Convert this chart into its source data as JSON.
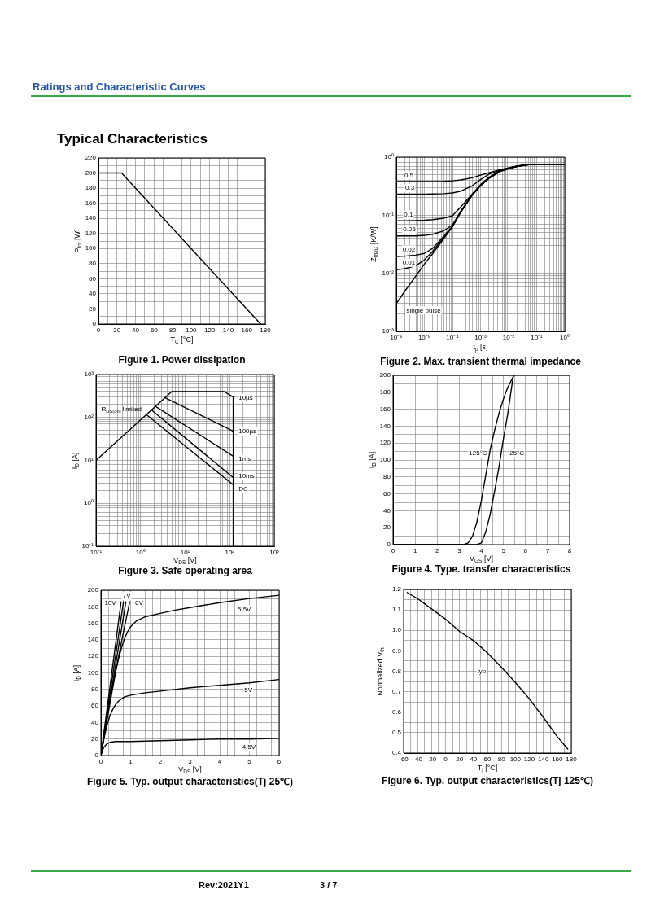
{
  "chart_data": [
    {
      "type": "line",
      "title": "Figure 1. Power dissipation",
      "xlabel": "T$_{C}$ [°C]",
      "ylabel": "P$_{tot}$ [W]",
      "annotations": [
        "Ratings and Characteristic Curves",
        "Typical Characteristics"
      ],
      "x": [
        0,
        25,
        175
      ],
      "values": [
        200,
        200,
        0
      ],
      "color": "#000000",
      "xlim": [
        0,
        180
      ],
      "ylim": [
        0,
        220
      ],
      "xticks": [
        0,
        {
          "value": 10,
          "label": null
        },
        20,
        {
          "value": 30,
          "label": null
        },
        40,
        {
          "value": 50,
          "label": null
        },
        60,
        {
          "value": 70,
          "label": null
        },
        80,
        {
          "value": 90,
          "label": null
        },
        100,
        {
          "value": 110,
          "label": null
        },
        120,
        {
          "value": 130,
          "label": null
        },
        140,
        {
          "value": 150,
          "label": null
        },
        160,
        {
          "value": 170,
          "label": null
        },
        180
      ],
      "yticks": [
        0,
        {
          "value": 10,
          "label": null
        },
        20,
        {
          "value": 30,
          "label": null
        },
        40,
        {
          "value": 50,
          "label": null
        },
        60,
        {
          "value": 70,
          "label": null
        },
        80,
        {
          "value": 90,
          "label": null
        },
        100,
        {
          "value": 110,
          "label": null
        },
        120,
        {
          "value": 130,
          "label": null
        },
        140,
        {
          "value": 150,
          "label": null
        },
        160,
        {
          "value": 170,
          "label": null
        },
        180,
        {
          "value": 190,
          "label": null
        },
        200,
        {
          "value": 210,
          "label": null
        },
        220
      ],
      "grid": true,
      "marker": "none"
    },
    {
      "type": "line",
      "title": "Figure 2. Max. transient thermal impedance",
      "xlabel": "t$_{p}$ [s]",
      "ylabel": "Z$_{thJC}$ [K/W]",
      "x": [
        1e-06,
        2e-06,
        5e-06,
        1e-05,
        2e-05,
        5e-05,
        0.0001,
        0.0002,
        0.0005,
        0.001,
        0.002,
        0.005,
        0.01,
        0.02,
        0.05,
        0.1,
        1
      ],
      "series": [
        {
          "name": "0.5",
          "color": "#000000",
          "values": [
            0.38,
            0.38,
            0.38,
            0.38,
            0.381,
            0.383,
            0.39,
            0.405,
            0.44,
            0.49,
            0.54,
            0.61,
            0.655,
            0.705,
            0.745,
            0.75,
            0.75
          ]
        },
        {
          "name": "0.3",
          "color": "#000000",
          "values": [
            0.23,
            0.23,
            0.23,
            0.231,
            0.232,
            0.235,
            0.242,
            0.26,
            0.32,
            0.41,
            0.51,
            0.6,
            0.65,
            0.7,
            0.745,
            0.75,
            0.75
          ]
        },
        {
          "name": "0.1",
          "color": "#000000",
          "values": [
            0.08,
            0.08,
            0.081,
            0.082,
            0.084,
            0.089,
            0.098,
            0.14,
            0.23,
            0.335,
            0.45,
            0.585,
            0.645,
            0.7,
            0.74,
            0.75,
            0.75
          ]
        },
        {
          "name": "0.05",
          "color": "#000000",
          "values": [
            0.044,
            0.044,
            0.044,
            0.045,
            0.047,
            0.054,
            0.068,
            0.118,
            0.225,
            0.33,
            0.445,
            0.58,
            0.64,
            0.695,
            0.74,
            0.75,
            0.75
          ]
        },
        {
          "name": "0.02",
          "color": "#000000",
          "values": [
            0.0195,
            0.0197,
            0.0205,
            0.022,
            0.027,
            0.044,
            0.065,
            0.116,
            0.222,
            0.325,
            0.44,
            0.575,
            0.64,
            0.695,
            0.74,
            0.75,
            0.75
          ]
        },
        {
          "name": "0.01",
          "color": "#000000",
          "values": [
            0.0115,
            0.012,
            0.0135,
            0.017,
            0.024,
            0.042,
            0.064,
            0.115,
            0.221,
            0.323,
            0.435,
            0.57,
            0.635,
            0.69,
            0.74,
            0.75,
            0.75
          ]
        },
        {
          "name": "single pulse",
          "color": "#000000",
          "values": [
            0.003,
            0.0049,
            0.009,
            0.0144,
            0.022,
            0.04,
            0.063,
            0.113,
            0.22,
            0.32,
            0.43,
            0.565,
            0.63,
            0.69,
            0.74,
            0.75,
            0.75
          ]
        }
      ],
      "xlim": [
        1e-06,
        1
      ],
      "ylim": [
        0.001,
        1
      ],
      "log": "xy",
      "xticks": [
        {
          "value": 1e-06,
          "label": "10⁻⁶"
        },
        {
          "value": 2e-06,
          "label": null
        },
        {
          "value": 3e-06,
          "label": null
        },
        {
          "value": 4e-06,
          "label": null
        },
        {
          "value": 5e-06,
          "label": null
        },
        {
          "value": 6e-06,
          "label": null
        },
        {
          "value": 7e-06,
          "label": null
        },
        {
          "value": 8e-06,
          "label": null
        },
        {
          "value": 9e-06,
          "label": null
        },
        {
          "value": 1e-05,
          "label": "10⁻⁵"
        },
        {
          "value": 2e-05,
          "label": null
        },
        {
          "value": 3e-05,
          "label": null
        },
        {
          "value": 4e-05,
          "label": null
        },
        {
          "value": 5e-05,
          "label": null
        },
        {
          "value": 6e-05,
          "label": null
        },
        {
          "value": 7e-05,
          "label": null
        },
        {
          "value": 8e-05,
          "label": null
        },
        {
          "value": 9e-05,
          "label": null
        },
        {
          "value": 0.0001,
          "label": "10⁻⁴"
        },
        {
          "value": 0.0002,
          "label": null
        },
        {
          "value": 0.0003,
          "label": null
        },
        {
          "value": 0.0004,
          "label": null
        },
        {
          "value": 0.0005,
          "label": null
        },
        {
          "value": 0.0006,
          "label": null
        },
        {
          "value": 0.0007,
          "label": null
        },
        {
          "value": 0.0008,
          "label": null
        },
        {
          "value": 0.0009,
          "label": null
        },
        {
          "value": 0.001,
          "label": "10⁻³"
        },
        {
          "value": 0.002,
          "label": null
        },
        {
          "value": 0.003,
          "label": null
        },
        {
          "value": 0.004,
          "label": null
        },
        {
          "value": 0.005,
          "label": null
        },
        {
          "value": 0.006,
          "label": null
        },
        {
          "value": 0.007,
          "label": null
        },
        {
          "value": 0.008,
          "label": null
        },
        {
          "value": 0.009,
          "label": null
        },
        {
          "value": 0.01,
          "label": "10⁻²"
        },
        {
          "value": 0.02,
          "label": null
        },
        {
          "value": 0.03,
          "label": null
        },
        {
          "value": 0.04,
          "label": null
        },
        {
          "value": 0.05,
          "label": null
        },
        {
          "value": 0.06,
          "label": null
        },
        {
          "value": 0.07,
          "label": null
        },
        {
          "value": 0.08,
          "label": null
        },
        {
          "value": 0.09,
          "label": null
        },
        {
          "value": 0.1,
          "label": "10⁻¹"
        },
        {
          "value": 0.2,
          "label": null
        },
        {
          "value": 0.3,
          "label": null
        },
        {
          "value": 0.4,
          "label": null
        },
        {
          "value": 0.5,
          "label": null
        },
        {
          "value": 0.6,
          "label": null
        },
        {
          "value": 0.7,
          "label": null
        },
        {
          "value": 0.8,
          "label": null
        },
        {
          "value": 0.9,
          "label": null
        },
        {
          "value": 1,
          "label": "10⁰"
        }
      ],
      "yticks": [
        {
          "value": 0.001,
          "label": "10⁻³"
        },
        {
          "value": 0.002,
          "label": null
        },
        {
          "value": 0.003,
          "label": null
        },
        {
          "value": 0.004,
          "label": null
        },
        {
          "value": 0.005,
          "label": null
        },
        {
          "value": 0.006,
          "label": null
        },
        {
          "value": 0.007,
          "label": null
        },
        {
          "value": 0.008,
          "label": null
        },
        {
          "value": 0.009,
          "label": null
        },
        {
          "value": 0.01,
          "label": "10⁻²"
        },
        {
          "value": 0.02,
          "label": null
        },
        {
          "value": 0.03,
          "label": null
        },
        {
          "value": 0.04,
          "label": null
        },
        {
          "value": 0.05,
          "label": null
        },
        {
          "value": 0.06,
          "label": null
        },
        {
          "value": 0.07,
          "label": null
        },
        {
          "value": 0.08,
          "label": null
        },
        {
          "value": 0.09,
          "label": null
        },
        {
          "value": 0.1,
          "label": "10⁻¹"
        },
        {
          "value": 0.2,
          "label": null
        },
        {
          "value": 0.3,
          "label": null
        },
        {
          "value": 0.4,
          "label": null
        },
        {
          "value": 0.5,
          "label": null
        },
        {
          "value": 0.6,
          "label": null
        },
        {
          "value": 0.7,
          "label": null
        },
        {
          "value": 0.8,
          "label": null
        },
        {
          "value": 0.9,
          "label": null
        },
        {
          "value": 1,
          "label": "10⁰"
        }
      ],
      "grid": true,
      "marker": "none"
    },
    {
      "type": "line",
      "title": "Figure 3. Safe operating area",
      "xlabel": "V$_{DS}$ [V]",
      "ylabel": "I$_{D}$ [A]",
      "annotations": [
        "R$_{DS(on)}$ limited"
      ],
      "series": [
        {
          "name": "10µs",
          "color": "#000000",
          "x": [
            0.1,
            5,
            75,
            120,
            120
          ],
          "values": [
            10,
            400,
            400,
            300,
            0.1
          ]
        },
        {
          "name": "100µs",
          "color": "#000000",
          "x": [
            3.5,
            120
          ],
          "values": [
            290,
            48
          ]
        },
        {
          "name": "1ms",
          "color": "#000000",
          "x": [
            2.1,
            120
          ],
          "values": [
            185,
            12.5
          ]
        },
        {
          "name": "10ms",
          "color": "#000000",
          "x": [
            1.75,
            120
          ],
          "values": [
            150,
            4
          ]
        },
        {
          "name": "DC",
          "color": "#000000",
          "x": [
            1.3,
            120
          ],
          "values": [
            120,
            2.7
          ]
        }
      ],
      "xlim": [
        0.1,
        1000
      ],
      "ylim": [
        0.1,
        1000
      ],
      "log": "xy",
      "xticks": [
        {
          "value": 0.1,
          "label": "10⁻¹"
        },
        {
          "value": 0.2,
          "label": null
        },
        {
          "value": 0.3,
          "label": null
        },
        {
          "value": 0.4,
          "label": null
        },
        {
          "value": 0.5,
          "label": null
        },
        {
          "value": 0.6,
          "label": null
        },
        {
          "value": 0.7,
          "label": null
        },
        {
          "value": 0.8,
          "label": null
        },
        {
          "value": 0.9,
          "label": null
        },
        {
          "value": 1,
          "label": "10⁰"
        },
        {
          "value": 2,
          "label": null
        },
        {
          "value": 3,
          "label": null
        },
        {
          "value": 4,
          "label": null
        },
        {
          "value": 5,
          "label": null
        },
        {
          "value": 6,
          "label": null
        },
        {
          "value": 7,
          "label": null
        },
        {
          "value": 8,
          "label": null
        },
        {
          "value": 9,
          "label": null
        },
        {
          "value": 10,
          "label": "10¹"
        },
        {
          "value": 20,
          "label": null
        },
        {
          "value": 30,
          "label": null
        },
        {
          "value": 40,
          "label": null
        },
        {
          "value": 50,
          "label": null
        },
        {
          "value": 60,
          "label": null
        },
        {
          "value": 70,
          "label": null
        },
        {
          "value": 80,
          "label": null
        },
        {
          "value": 90,
          "label": null
        },
        {
          "value": 100,
          "label": "10²"
        },
        {
          "value": 200,
          "label": null
        },
        {
          "value": 300,
          "label": null
        },
        {
          "value": 400,
          "label": null
        },
        {
          "value": 500,
          "label": null
        },
        {
          "value": 600,
          "label": null
        },
        {
          "value": 700,
          "label": null
        },
        {
          "value": 800,
          "label": null
        },
        {
          "value": 900,
          "label": null
        },
        {
          "value": 1000,
          "label": "10³"
        }
      ],
      "yticks": [
        {
          "value": 0.1,
          "label": "10⁻¹"
        },
        {
          "value": 0.2,
          "label": null
        },
        {
          "value": 0.3,
          "label": null
        },
        {
          "value": 0.4,
          "label": null
        },
        {
          "value": 0.5,
          "label": null
        },
        {
          "value": 0.6,
          "label": null
        },
        {
          "value": 0.7,
          "label": null
        },
        {
          "value": 0.8,
          "label": null
        },
        {
          "value": 0.9,
          "label": null
        },
        {
          "value": 1,
          "label": "10⁰"
        },
        {
          "value": 2,
          "label": null
        },
        {
          "value": 3,
          "label": null
        },
        {
          "value": 4,
          "label": null
        },
        {
          "value": 5,
          "label": null
        },
        {
          "value": 6,
          "label": null
        },
        {
          "value": 7,
          "label": null
        },
        {
          "value": 8,
          "label": null
        },
        {
          "value": 9,
          "label": null
        },
        {
          "value": 10,
          "label": "10¹"
        },
        {
          "value": 20,
          "label": null
        },
        {
          "value": 30,
          "label": null
        },
        {
          "value": 40,
          "label": null
        },
        {
          "value": 50,
          "label": null
        },
        {
          "value": 60,
          "label": null
        },
        {
          "value": 70,
          "label": null
        },
        {
          "value": 80,
          "label": null
        },
        {
          "value": 90,
          "label": null
        },
        {
          "value": 100,
          "label": "10²"
        },
        {
          "value": 200,
          "label": null
        },
        {
          "value": 300,
          "label": null
        },
        {
          "value": 400,
          "label": null
        },
        {
          "value": 500,
          "label": null
        },
        {
          "value": 600,
          "label": null
        },
        {
          "value": 700,
          "label": null
        },
        {
          "value": 800,
          "label": null
        },
        {
          "value": 900,
          "label": null
        },
        {
          "value": 1000,
          "label": "10³"
        }
      ],
      "grid": true,
      "marker": "none"
    },
    {
      "type": "line",
      "title": "Figure 4. Type. transfer characteristics",
      "xlabel": "V$_{GS}$ [V]",
      "ylabel": "I$_{D}$ [A]",
      "series": [
        {
          "name": "125°C",
          "color": "#000000",
          "x": [
            0,
            3.2,
            3.4,
            3.6,
            3.8,
            4.0,
            4.2,
            4.4,
            4.6,
            4.8,
            5.0,
            5.2,
            5.48
          ],
          "values": [
            0,
            0,
            2,
            10,
            27,
            52,
            82,
            112,
            135,
            155,
            172,
            186,
            200
          ]
        },
        {
          "name": "25°C",
          "color": "#000000",
          "x": [
            0,
            3.8,
            4.0,
            4.2,
            4.4,
            4.6,
            4.8,
            5.0,
            5.2,
            5.45
          ],
          "values": [
            0,
            0,
            2,
            15,
            36,
            63,
            92,
            125,
            155,
            200
          ]
        }
      ],
      "xlim": [
        0,
        8
      ],
      "ylim": [
        0,
        200
      ],
      "xticks": [
        0,
        {
          "value": 0.5,
          "label": null
        },
        1,
        {
          "value": 1.5,
          "label": null
        },
        2,
        {
          "value": 2.5,
          "label": null
        },
        3,
        {
          "value": 3.5,
          "label": null
        },
        4,
        {
          "value": 4.5,
          "label": null
        },
        5,
        {
          "value": 5.5,
          "label": null
        },
        6,
        {
          "value": 6.5,
          "label": null
        },
        7,
        {
          "value": 7.5,
          "label": null
        },
        8
      ],
      "yticks": [
        0,
        {
          "value": 10,
          "label": null
        },
        20,
        {
          "value": 30,
          "label": null
        },
        40,
        {
          "value": 50,
          "label": null
        },
        60,
        {
          "value": 70,
          "label": null
        },
        80,
        {
          "value": 90,
          "label": null
        },
        100,
        {
          "value": 110,
          "label": null
        },
        120,
        {
          "value": 130,
          "label": null
        },
        140,
        {
          "value": 150,
          "label": null
        },
        160,
        {
          "value": 170,
          "label": null
        },
        180,
        {
          "value": 190,
          "label": null
        },
        200
      ],
      "grid": true,
      "marker": "none"
    },
    {
      "type": "line",
      "title": "Figure 5. Typ. output characteristics(Tj 25℃)",
      "xlabel": "V$_{DS}$ [V]",
      "ylabel": "I$_{D}$ [A]",
      "series": [
        {
          "name": "10V",
          "color": "#000000",
          "x": [
            0,
            0.68
          ],
          "values": [
            0,
            186
          ]
        },
        {
          "name": "7V",
          "color": "#000000",
          "x": [
            0,
            0.84
          ],
          "values": [
            0,
            186
          ]
        },
        {
          "name": "6V",
          "color": "#000000",
          "x": [
            0,
            0.25,
            0.5,
            0.75,
            0.97
          ],
          "values": [
            0,
            52,
            102,
            148,
            186
          ]
        },
        {
          "name": "5.5V",
          "color": "#000000",
          "x": [
            0,
            0.1,
            0.2,
            0.3,
            0.4,
            0.5,
            0.6,
            0.7,
            0.8,
            0.9,
            1,
            1.2,
            1.5,
            2,
            2.5,
            3,
            4,
            5,
            6
          ],
          "values": [
            0,
            22,
            45,
            66,
            85,
            103,
            118,
            131,
            142,
            150,
            156,
            163,
            168,
            172,
            176,
            179,
            185,
            190,
            194
          ]
        },
        {
          "name": "5V",
          "color": "#000000",
          "x": [
            0,
            0.1,
            0.2,
            0.3,
            0.4,
            0.5,
            0.6,
            0.8,
            1,
            1.5,
            2,
            3,
            4,
            5,
            6
          ],
          "values": [
            0,
            20,
            36,
            48,
            56,
            62,
            66,
            71,
            73,
            76,
            78,
            82,
            85,
            88,
            92
          ]
        },
        {
          "name": "4.5V",
          "color": "#000000",
          "x": [
            0,
            0.05,
            0.1,
            0.2,
            0.3,
            0.5,
            1,
            2,
            3,
            4,
            5,
            6
          ],
          "values": [
            0,
            6,
            10,
            14,
            16,
            17,
            17,
            18,
            19,
            20,
            20,
            21
          ]
        },
        {
          "color": "#000000",
          "x": [
            0,
            0.76
          ],
          "values": [
            0,
            186
          ]
        }
      ],
      "xlim": [
        0,
        6
      ],
      "ylim": [
        0,
        200
      ],
      "xticks": [
        0,
        {
          "value": 0.25,
          "label": null
        },
        {
          "value": 0.5,
          "label": null
        },
        {
          "value": 0.75,
          "label": null
        },
        1,
        {
          "value": 1.25,
          "label": null
        },
        {
          "value": 1.5,
          "label": null
        },
        {
          "value": 1.75,
          "label": null
        },
        2,
        {
          "value": 2.25,
          "label": null
        },
        {
          "value": 2.5,
          "label": null
        },
        {
          "value": 2.75,
          "label": null
        },
        3,
        {
          "value": 3.25,
          "label": null
        },
        {
          "value": 3.5,
          "label": null
        },
        {
          "value": 3.75,
          "label": null
        },
        4,
        {
          "value": 4.25,
          "label": null
        },
        {
          "value": 4.5,
          "label": null
        },
        {
          "value": 4.75,
          "label": null
        },
        5,
        {
          "value": 5.25,
          "label": null
        },
        {
          "value": 5.5,
          "label": null
        },
        {
          "value": 5.75,
          "label": null
        },
        6
      ],
      "yticks": [
        0,
        {
          "value": 10,
          "label": null
        },
        20,
        {
          "value": 30,
          "label": null
        },
        40,
        {
          "value": 50,
          "label": null
        },
        60,
        {
          "value": 70,
          "label": null
        },
        80,
        {
          "value": 90,
          "label": null
        },
        100,
        {
          "value": 110,
          "label": null
        },
        120,
        {
          "value": 130,
          "label": null
        },
        140,
        {
          "value": 150,
          "label": null
        },
        160,
        {
          "value": 170,
          "label": null
        },
        180,
        {
          "value": 190,
          "label": null
        },
        200
      ],
      "grid": true,
      "marker": "none"
    },
    {
      "type": "line",
      "title": "Figure 6. Typ. output characteristics(Tj 125℃)",
      "xlabel": "T$_{j}$ [°C]",
      "ylabel": "Normalized V$_{th}$",
      "annotations": [
        "Rev:2021Y1",
        "3 / 7"
      ],
      "series": [
        {
          "name": "typ",
          "color": "#000000",
          "x": [
            -55,
            -40,
            -20,
            0,
            20,
            40,
            60,
            80,
            100,
            120,
            140,
            160,
            175
          ],
          "values": [
            1.185,
            1.155,
            1.105,
            1.055,
            0.995,
            0.95,
            0.89,
            0.82,
            0.745,
            0.665,
            0.575,
            0.48,
            0.42
          ]
        }
      ],
      "xlim": [
        -60,
        180
      ],
      "ylim": [
        0.4,
        1.2
      ],
      "xticks": [
        -60,
        {
          "value": -50,
          "label": null
        },
        -40,
        {
          "value": -30,
          "label": null
        },
        -20,
        {
          "value": -10,
          "label": null
        },
        0,
        {
          "value": 10,
          "label": null
        },
        20,
        {
          "value": 30,
          "label": null
        },
        40,
        {
          "value": 50,
          "label": null
        },
        60,
        {
          "value": 70,
          "label": null
        },
        80,
        {
          "value": 90,
          "label": null
        },
        100,
        {
          "value": 110,
          "label": null
        },
        120,
        {
          "value": 130,
          "label": null
        },
        140,
        {
          "value": 150,
          "label": null
        },
        160,
        {
          "value": 170,
          "label": null
        },
        180
      ],
      "yticks": [
        0.4,
        {
          "value": 0.45,
          "label": null
        },
        0.5,
        {
          "value": 0.55,
          "label": null
        },
        0.6,
        {
          "value": 0.65,
          "label": null
        },
        0.7,
        {
          "value": 0.75,
          "label": null
        },
        0.8,
        {
          "value": 0.85,
          "label": null
        },
        0.9,
        {
          "value": 0.95,
          "label": null
        },
        {
          "value": 1,
          "label": "1.0"
        },
        {
          "value": 1.05,
          "label": null
        },
        1.1,
        {
          "value": 1.15,
          "label": null
        },
        1.2
      ],
      "grid": true,
      "marker": "none"
    }
  ]
}
